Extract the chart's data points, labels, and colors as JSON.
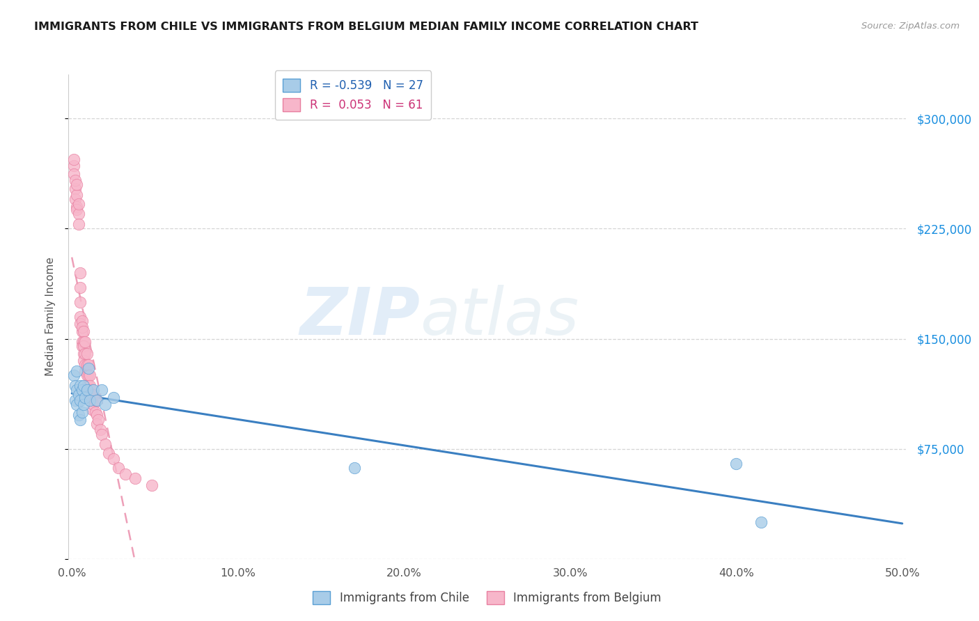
{
  "title": "IMMIGRANTS FROM CHILE VS IMMIGRANTS FROM BELGIUM MEDIAN FAMILY INCOME CORRELATION CHART",
  "source": "Source: ZipAtlas.com",
  "ylabel": "Median Family Income",
  "xlim": [
    -0.002,
    0.502
  ],
  "ylim": [
    0,
    330000
  ],
  "yticks": [
    0,
    75000,
    150000,
    225000,
    300000
  ],
  "ytick_labels_right": [
    "",
    "$75,000",
    "$150,000",
    "$225,000",
    "$300,000"
  ],
  "xticks": [
    0.0,
    0.1,
    0.2,
    0.3,
    0.4,
    0.5
  ],
  "xtick_labels": [
    "0.0%",
    "10.0%",
    "20.0%",
    "30.0%",
    "40.0%",
    "50.0%"
  ],
  "chile_color": "#a8cce8",
  "chile_edge_color": "#5a9fd4",
  "chile_line_color": "#3a7fc1",
  "belgium_color": "#f7b6ca",
  "belgium_edge_color": "#e87fa0",
  "belgium_line_color": "#e87fa0",
  "chile_R": -0.539,
  "chile_N": 27,
  "belgium_R": 0.053,
  "belgium_N": 61,
  "watermark_zip": "ZIP",
  "watermark_atlas": "atlas",
  "chile_x": [
    0.001,
    0.002,
    0.002,
    0.003,
    0.003,
    0.003,
    0.004,
    0.004,
    0.005,
    0.005,
    0.005,
    0.006,
    0.006,
    0.007,
    0.007,
    0.008,
    0.009,
    0.01,
    0.011,
    0.013,
    0.015,
    0.018,
    0.02,
    0.025,
    0.17,
    0.4,
    0.415
  ],
  "chile_y": [
    125000,
    118000,
    108000,
    115000,
    105000,
    128000,
    112000,
    98000,
    118000,
    108000,
    95000,
    115000,
    100000,
    118000,
    105000,
    110000,
    115000,
    130000,
    108000,
    115000,
    108000,
    115000,
    105000,
    110000,
    62000,
    65000,
    25000
  ],
  "belgium_x": [
    0.001,
    0.001,
    0.001,
    0.002,
    0.002,
    0.002,
    0.003,
    0.003,
    0.003,
    0.003,
    0.004,
    0.004,
    0.004,
    0.005,
    0.005,
    0.005,
    0.005,
    0.005,
    0.006,
    0.006,
    0.006,
    0.006,
    0.006,
    0.007,
    0.007,
    0.007,
    0.007,
    0.007,
    0.008,
    0.008,
    0.008,
    0.008,
    0.009,
    0.009,
    0.009,
    0.009,
    0.01,
    0.01,
    0.01,
    0.011,
    0.011,
    0.011,
    0.012,
    0.012,
    0.012,
    0.013,
    0.013,
    0.014,
    0.014,
    0.015,
    0.015,
    0.016,
    0.017,
    0.018,
    0.02,
    0.022,
    0.025,
    0.028,
    0.032,
    0.038,
    0.048
  ],
  "belgium_y": [
    268000,
    262000,
    272000,
    252000,
    258000,
    245000,
    248000,
    240000,
    238000,
    255000,
    235000,
    228000,
    242000,
    185000,
    195000,
    175000,
    165000,
    160000,
    162000,
    155000,
    148000,
    158000,
    145000,
    155000,
    148000,
    140000,
    135000,
    145000,
    148000,
    140000,
    132000,
    128000,
    140000,
    132000,
    125000,
    118000,
    132000,
    125000,
    118000,
    125000,
    118000,
    112000,
    115000,
    108000,
    102000,
    112000,
    105000,
    108000,
    100000,
    98000,
    92000,
    95000,
    88000,
    85000,
    78000,
    72000,
    68000,
    62000,
    58000,
    55000,
    50000
  ]
}
